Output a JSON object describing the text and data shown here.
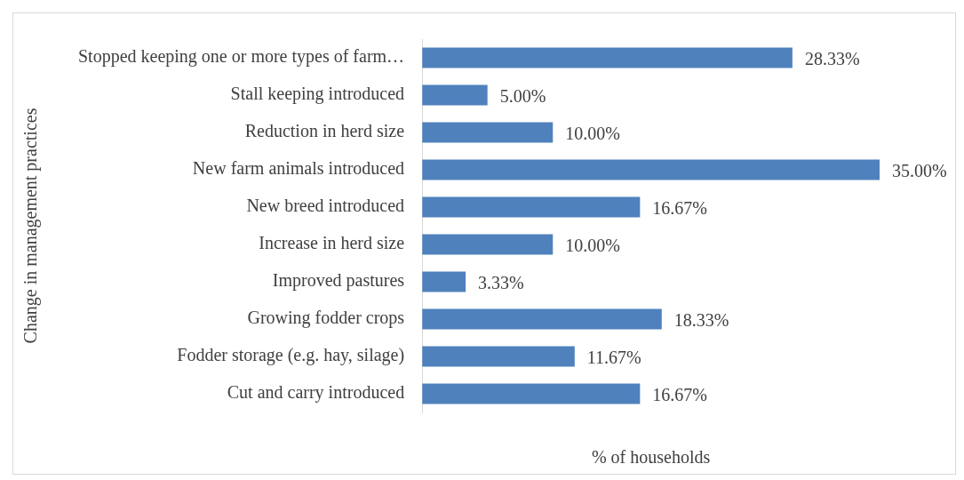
{
  "chart_data": {
    "type": "bar",
    "orientation": "horizontal",
    "xlabel": "% of households",
    "ylabel": "Change in management practices",
    "categories": [
      "Stopped keeping one or more types of farm…",
      "Stall keeping introduced",
      "Reduction in herd size",
      "New farm animals introduced",
      "New breed introduced",
      "Increase in herd size",
      "Improved pastures",
      "Growing fodder crops",
      "Fodder storage (e.g. hay, silage)",
      "Cut and carry introduced"
    ],
    "values": [
      28.33,
      5.0,
      10.0,
      35.0,
      16.67,
      10.0,
      3.33,
      18.33,
      11.67,
      16.67
    ],
    "value_labels": [
      "28.33%",
      "5.00%",
      "10.00%",
      "35.00%",
      "16.67%",
      "10.00%",
      "3.33%",
      "18.33%",
      "11.67%",
      "16.67%"
    ],
    "color": "#4f81bd",
    "grid": false,
    "legend": false
  }
}
